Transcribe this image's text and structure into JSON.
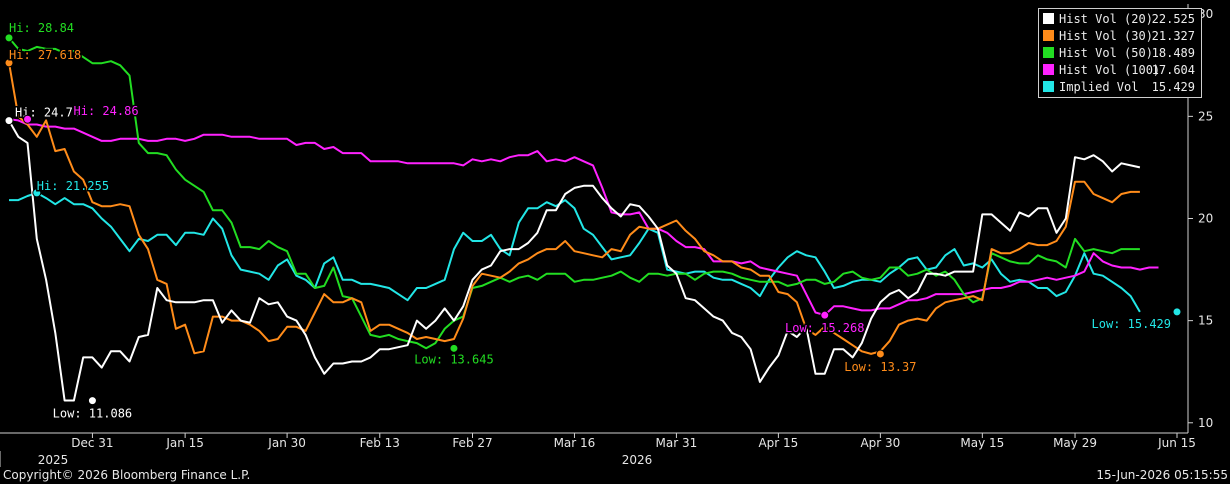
{
  "chart_data": {
    "type": "line",
    "x_dates": [
      "2025-12-17",
      "2025-12-18",
      "2025-12-19",
      "2025-12-22",
      "2025-12-23",
      "2025-12-24",
      "2025-12-26",
      "2025-12-29",
      "2025-12-30",
      "2025-12-31",
      "2026-01-02",
      "2026-01-05",
      "2026-01-06",
      "2026-01-07",
      "2026-01-08",
      "2026-01-09",
      "2026-01-12",
      "2026-01-13",
      "2026-01-14",
      "2026-01-15",
      "2026-01-16",
      "2026-01-19",
      "2026-01-20",
      "2026-01-21",
      "2026-01-22",
      "2026-01-23",
      "2026-01-26",
      "2026-01-27",
      "2026-01-28",
      "2026-01-29",
      "2026-01-30",
      "2026-02-02",
      "2026-02-03",
      "2026-02-04",
      "2026-02-05",
      "2026-02-06",
      "2026-02-09",
      "2026-02-10",
      "2026-02-11",
      "2026-02-12",
      "2026-02-13",
      "2026-02-16",
      "2026-02-17",
      "2026-02-18",
      "2026-02-19",
      "2026-02-20",
      "2026-02-23",
      "2026-02-24",
      "2026-02-25",
      "2026-02-26",
      "2026-02-27",
      "2026-03-02",
      "2026-03-03",
      "2026-03-04",
      "2026-03-05",
      "2026-03-06",
      "2026-03-09",
      "2026-03-10",
      "2026-03-11",
      "2026-03-12",
      "2026-03-13",
      "2026-03-16",
      "2026-03-17",
      "2026-03-18",
      "2026-03-19",
      "2026-03-20",
      "2026-03-23",
      "2026-03-24",
      "2026-03-25",
      "2026-03-26",
      "2026-03-27",
      "2026-03-30",
      "2026-03-31",
      "2026-04-01",
      "2026-04-02",
      "2026-04-03",
      "2026-04-06",
      "2026-04-07",
      "2026-04-08",
      "2026-04-09",
      "2026-04-10",
      "2026-04-13",
      "2026-04-14",
      "2026-04-15",
      "2026-04-16",
      "2026-04-17",
      "2026-04-20",
      "2026-04-21",
      "2026-04-22",
      "2026-04-23",
      "2026-04-24",
      "2026-04-27",
      "2026-04-28",
      "2026-04-29",
      "2026-04-30",
      "2026-05-01",
      "2026-05-04",
      "2026-05-05",
      "2026-05-06",
      "2026-05-07",
      "2026-05-08",
      "2026-05-11",
      "2026-05-12",
      "2026-05-13",
      "2026-05-14",
      "2026-05-15",
      "2026-05-18",
      "2026-05-19",
      "2026-05-20",
      "2026-05-21",
      "2026-05-22",
      "2026-05-25",
      "2026-05-26",
      "2026-05-27",
      "2026-05-28",
      "2026-05-29",
      "2026-06-01",
      "2026-06-02",
      "2026-06-03",
      "2026-06-04",
      "2026-06-05",
      "2026-06-08",
      "2026-06-09",
      "2026-06-10",
      "2026-06-11",
      "2026-06-12",
      "2026-06-15"
    ],
    "x_ticks": [
      {
        "date": "2025-12-31",
        "label": "Dec 31"
      },
      {
        "date": "2026-01-15",
        "label": "Jan 15"
      },
      {
        "date": "2026-01-30",
        "label": "Jan 30"
      },
      {
        "date": "2026-02-13",
        "label": "Feb 13"
      },
      {
        "date": "2026-02-27",
        "label": "Feb 27"
      },
      {
        "date": "2026-03-16",
        "label": "Mar 16"
      },
      {
        "date": "2026-03-31",
        "label": "Mar 31"
      },
      {
        "date": "2026-04-15",
        "label": "Apr 15"
      },
      {
        "date": "2026-04-30",
        "label": "Apr 30"
      },
      {
        "date": "2026-05-15",
        "label": "May 15"
      },
      {
        "date": "2026-05-29",
        "label": "May 29"
      },
      {
        "date": "2026-06-15",
        "label": "Jun 15"
      }
    ],
    "year_labels": [
      {
        "date": "2025-12-17",
        "label": "2025"
      },
      {
        "date": "2026-03-18",
        "label": "2026"
      }
    ],
    "y_ticks": [
      10,
      15,
      20,
      25,
      30
    ],
    "ylim": [
      9.5,
      30.5
    ],
    "legend_position": "top-right",
    "grid": false,
    "series": [
      {
        "name": "Hist Vol (20)",
        "last": "22.525",
        "color": "#ffffff",
        "values": [
          24.79,
          24.0,
          23.7,
          19.0,
          17.0,
          14.4,
          11.09,
          11.09,
          13.2,
          13.2,
          12.7,
          13.5,
          13.5,
          13.0,
          14.2,
          14.3,
          16.6,
          16.0,
          15.9,
          15.9,
          15.9,
          16.0,
          16.0,
          14.9,
          15.5,
          15.0,
          14.9,
          16.1,
          15.8,
          15.9,
          15.2,
          15.0,
          14.3,
          13.2,
          12.4,
          12.9,
          12.9,
          13.0,
          13.0,
          13.2,
          13.6,
          13.6,
          13.7,
          13.8,
          15.0,
          14.6,
          15.0,
          15.6,
          15.0,
          15.7,
          17.0,
          17.5,
          17.7,
          18.4,
          18.5,
          18.5,
          18.8,
          19.3,
          20.4,
          20.4,
          21.2,
          21.5,
          21.6,
          21.6,
          21.0,
          20.5,
          20.1,
          20.7,
          20.6,
          20.1,
          19.5,
          17.7,
          17.3,
          16.1,
          16.0,
          15.6,
          15.2,
          15.0,
          14.4,
          14.2,
          13.6,
          12.0,
          12.7,
          13.3,
          14.5,
          14.2,
          14.7,
          12.4,
          12.4,
          13.6,
          13.6,
          13.2,
          13.9,
          15.1,
          15.9,
          16.3,
          16.5,
          16.1,
          16.4,
          17.3,
          17.3,
          17.2,
          17.4,
          17.4,
          17.4,
          20.2,
          20.2,
          19.8,
          19.4,
          20.3,
          20.1,
          20.5,
          20.5,
          19.3,
          20.0,
          23.0,
          22.9,
          23.1,
          22.8,
          22.3,
          22.7,
          22.6,
          22.5
        ]
      },
      {
        "name": "Hist Vol (30)",
        "last": "21.327",
        "color": "#ff8c1a",
        "values": [
          27.62,
          25.0,
          24.6,
          24.0,
          24.8,
          23.3,
          23.4,
          22.3,
          21.9,
          20.8,
          20.6,
          20.6,
          20.7,
          20.6,
          19.2,
          18.5,
          17.0,
          16.8,
          14.6,
          14.8,
          13.4,
          13.5,
          15.2,
          15.2,
          15.0,
          15.0,
          14.8,
          14.5,
          14.0,
          14.1,
          14.7,
          14.7,
          14.5,
          15.4,
          16.3,
          15.9,
          15.9,
          16.1,
          15.9,
          14.5,
          14.8,
          14.8,
          14.6,
          14.4,
          14.1,
          14.2,
          14.1,
          14.0,
          14.1,
          15.1,
          16.7,
          17.3,
          17.2,
          17.1,
          17.4,
          17.8,
          18.0,
          18.3,
          18.5,
          18.5,
          18.9,
          18.4,
          18.3,
          18.2,
          18.1,
          18.5,
          18.4,
          19.2,
          19.6,
          19.5,
          19.5,
          19.7,
          19.9,
          19.4,
          19.0,
          18.4,
          18.2,
          17.9,
          17.9,
          17.6,
          17.5,
          17.2,
          17.2,
          16.4,
          16.3,
          15.9,
          14.6,
          14.3,
          14.7,
          14.4,
          14.1,
          13.8,
          13.5,
          13.37,
          13.5,
          14.0,
          14.8,
          15.0,
          15.1,
          15.0,
          15.6,
          15.9,
          16.0,
          16.1,
          16.2,
          16.0,
          18.5,
          18.3,
          18.3,
          18.5,
          18.8,
          18.7,
          18.7,
          18.9,
          19.6,
          21.8,
          21.8,
          21.2,
          21.0,
          20.8,
          21.2,
          21.3,
          21.3
        ]
      },
      {
        "name": "Hist Vol (50)",
        "last": "18.489",
        "color": "#22dd22",
        "values": [
          28.84,
          28.3,
          28.2,
          28.4,
          28.3,
          28.3,
          28.1,
          28.2,
          27.9,
          27.6,
          27.6,
          27.7,
          27.5,
          27.0,
          23.7,
          23.2,
          23.2,
          23.1,
          22.4,
          21.9,
          21.6,
          21.3,
          20.4,
          20.4,
          19.8,
          18.6,
          18.6,
          18.5,
          18.9,
          18.6,
          18.4,
          17.3,
          17.3,
          16.6,
          16.7,
          17.6,
          16.2,
          16.1,
          15.2,
          14.3,
          14.2,
          14.3,
          14.1,
          14.0,
          13.9,
          13.645,
          13.9,
          14.6,
          15.0,
          15.2,
          16.6,
          16.7,
          16.9,
          17.1,
          16.9,
          17.1,
          17.2,
          17.0,
          17.3,
          17.3,
          17.3,
          16.9,
          17.0,
          17.0,
          17.1,
          17.2,
          17.4,
          17.1,
          16.9,
          17.3,
          17.3,
          17.2,
          17.3,
          17.3,
          17.0,
          17.3,
          17.4,
          17.4,
          17.3,
          17.1,
          17.0,
          16.9,
          16.9,
          16.9,
          16.7,
          16.8,
          17.0,
          17.0,
          16.8,
          16.9,
          17.3,
          17.4,
          17.1,
          17.0,
          17.1,
          17.6,
          17.6,
          17.2,
          17.3,
          17.5,
          17.2,
          17.4,
          17.0,
          16.3,
          15.9,
          16.1,
          18.3,
          18.1,
          17.9,
          17.8,
          17.8,
          18.2,
          18.0,
          17.9,
          17.6,
          19.0,
          18.4,
          18.5,
          18.4,
          18.3,
          18.5,
          18.5,
          18.5
        ]
      },
      {
        "name": "Hist Vol (100)",
        "last": "17.604",
        "color": "#ff22ff",
        "values": [
          24.86,
          24.8,
          24.6,
          24.6,
          24.5,
          24.5,
          24.4,
          24.4,
          24.2,
          24.0,
          23.8,
          23.8,
          23.9,
          23.9,
          23.9,
          23.8,
          23.8,
          23.9,
          23.9,
          23.8,
          23.9,
          24.1,
          24.1,
          24.1,
          24.0,
          24.0,
          24.0,
          23.9,
          23.9,
          23.9,
          23.9,
          23.6,
          23.7,
          23.7,
          23.4,
          23.5,
          23.2,
          23.2,
          23.2,
          22.8,
          22.8,
          22.8,
          22.8,
          22.7,
          22.7,
          22.7,
          22.7,
          22.7,
          22.7,
          22.6,
          22.9,
          22.8,
          22.9,
          22.8,
          23.0,
          23.1,
          23.1,
          23.3,
          22.8,
          22.9,
          22.8,
          23.0,
          22.8,
          22.6,
          21.5,
          20.3,
          20.2,
          20.2,
          20.3,
          19.5,
          19.5,
          19.3,
          18.9,
          18.6,
          18.6,
          18.5,
          17.9,
          17.9,
          17.9,
          17.8,
          17.9,
          17.6,
          17.5,
          17.4,
          17.3,
          17.2,
          16.3,
          15.4,
          15.27,
          15.7,
          15.7,
          15.6,
          15.5,
          15.5,
          15.6,
          15.6,
          15.8,
          16.0,
          16.0,
          16.1,
          16.3,
          16.3,
          16.3,
          16.3,
          16.4,
          16.5,
          16.6,
          16.6,
          16.7,
          16.9,
          16.9,
          17.0,
          17.1,
          17.0,
          17.1,
          17.2,
          17.4,
          18.3,
          17.9,
          17.7,
          17.6,
          17.6,
          17.5,
          17.6,
          17.6
        ]
      },
      {
        "name": "Implied Vol",
        "last": "15.429",
        "color": "#22e6e6",
        "values": [
          20.9,
          20.9,
          21.1,
          21.255,
          21.0,
          20.7,
          21.0,
          20.7,
          20.7,
          20.5,
          20.0,
          19.6,
          19.0,
          18.4,
          19.0,
          18.9,
          19.2,
          19.2,
          18.7,
          19.3,
          19.3,
          19.2,
          20.0,
          19.5,
          18.2,
          17.5,
          17.4,
          17.3,
          17.0,
          17.7,
          18.0,
          17.2,
          17.0,
          16.6,
          17.8,
          18.1,
          17.0,
          17.0,
          16.8,
          16.8,
          16.7,
          16.6,
          16.3,
          16.0,
          16.6,
          16.6,
          16.8,
          17.0,
          18.5,
          19.3,
          18.9,
          18.9,
          19.2,
          18.5,
          18.2,
          19.8,
          20.5,
          20.5,
          20.8,
          20.6,
          20.9,
          20.5,
          19.5,
          19.2,
          18.6,
          18.0,
          18.1,
          18.2,
          18.8,
          19.5,
          19.3,
          17.5,
          17.4,
          17.3,
          17.4,
          17.4,
          17.1,
          17.0,
          17.0,
          16.8,
          16.6,
          16.2,
          17.0,
          17.6,
          18.1,
          18.4,
          18.2,
          18.1,
          17.4,
          16.6,
          16.7,
          16.9,
          17.0,
          17.0,
          16.9,
          17.3,
          17.6,
          18.0,
          18.1,
          17.5,
          17.6,
          18.2,
          18.5,
          17.7,
          17.8,
          17.6,
          18.0,
          17.3,
          16.9,
          17.0,
          16.9,
          16.6,
          16.6,
          16.2,
          16.4,
          17.2,
          18.3,
          17.3,
          17.2,
          16.9,
          16.6,
          16.2,
          15.429
        ]
      }
    ],
    "annotations": [
      {
        "series": 0,
        "text": "Hi: 24.792",
        "date": "2025-12-17",
        "value": 24.792,
        "anchor": "start",
        "dx": 6,
        "dy": -4
      },
      {
        "series": 0,
        "text": "Low: 11.086",
        "date": "2025-12-31",
        "value": 11.086,
        "anchor": "middle",
        "dx": 0,
        "dy": 17
      },
      {
        "series": 1,
        "text": "Hi: 27.618",
        "date": "2025-12-17",
        "value": 27.618,
        "anchor": "start",
        "dx": 0,
        "dy": -4
      },
      {
        "series": 1,
        "text": "Low: 13.37",
        "date": "2026-04-30",
        "value": 13.37,
        "anchor": "middle",
        "dx": 0,
        "dy": 17
      },
      {
        "series": 2,
        "text": "Hi: 28.84",
        "date": "2025-12-17",
        "value": 28.84,
        "anchor": "start",
        "dx": 0,
        "dy": -6
      },
      {
        "series": 2,
        "text": "Low: 13.645",
        "date": "2026-02-25",
        "value": 13.645,
        "anchor": "middle",
        "dx": 0,
        "dy": 15
      },
      {
        "series": 3,
        "text": "Hi: 24.86",
        "date": "2025-12-19",
        "value": 24.86,
        "anchor": "start",
        "dx": 46,
        "dy": -4
      },
      {
        "series": 3,
        "text": "Low: 15.268",
        "date": "2026-04-22",
        "value": 15.268,
        "anchor": "middle",
        "dx": 0,
        "dy": 17
      },
      {
        "series": 4,
        "text": "Hi: 21.255",
        "date": "2025-12-22",
        "value": 21.255,
        "anchor": "start",
        "dx": 0,
        "dy": -3
      },
      {
        "series": 4,
        "text": "Low: 15.429",
        "date": "2026-06-15",
        "value": 15.429,
        "anchor": "end",
        "dx": -6,
        "dy": 16
      }
    ]
  },
  "footer": {
    "copyright": "Copyright© 2026 Bloomberg Finance L.P.",
    "timestamp": "15-Jun-2026 05:15:55"
  }
}
